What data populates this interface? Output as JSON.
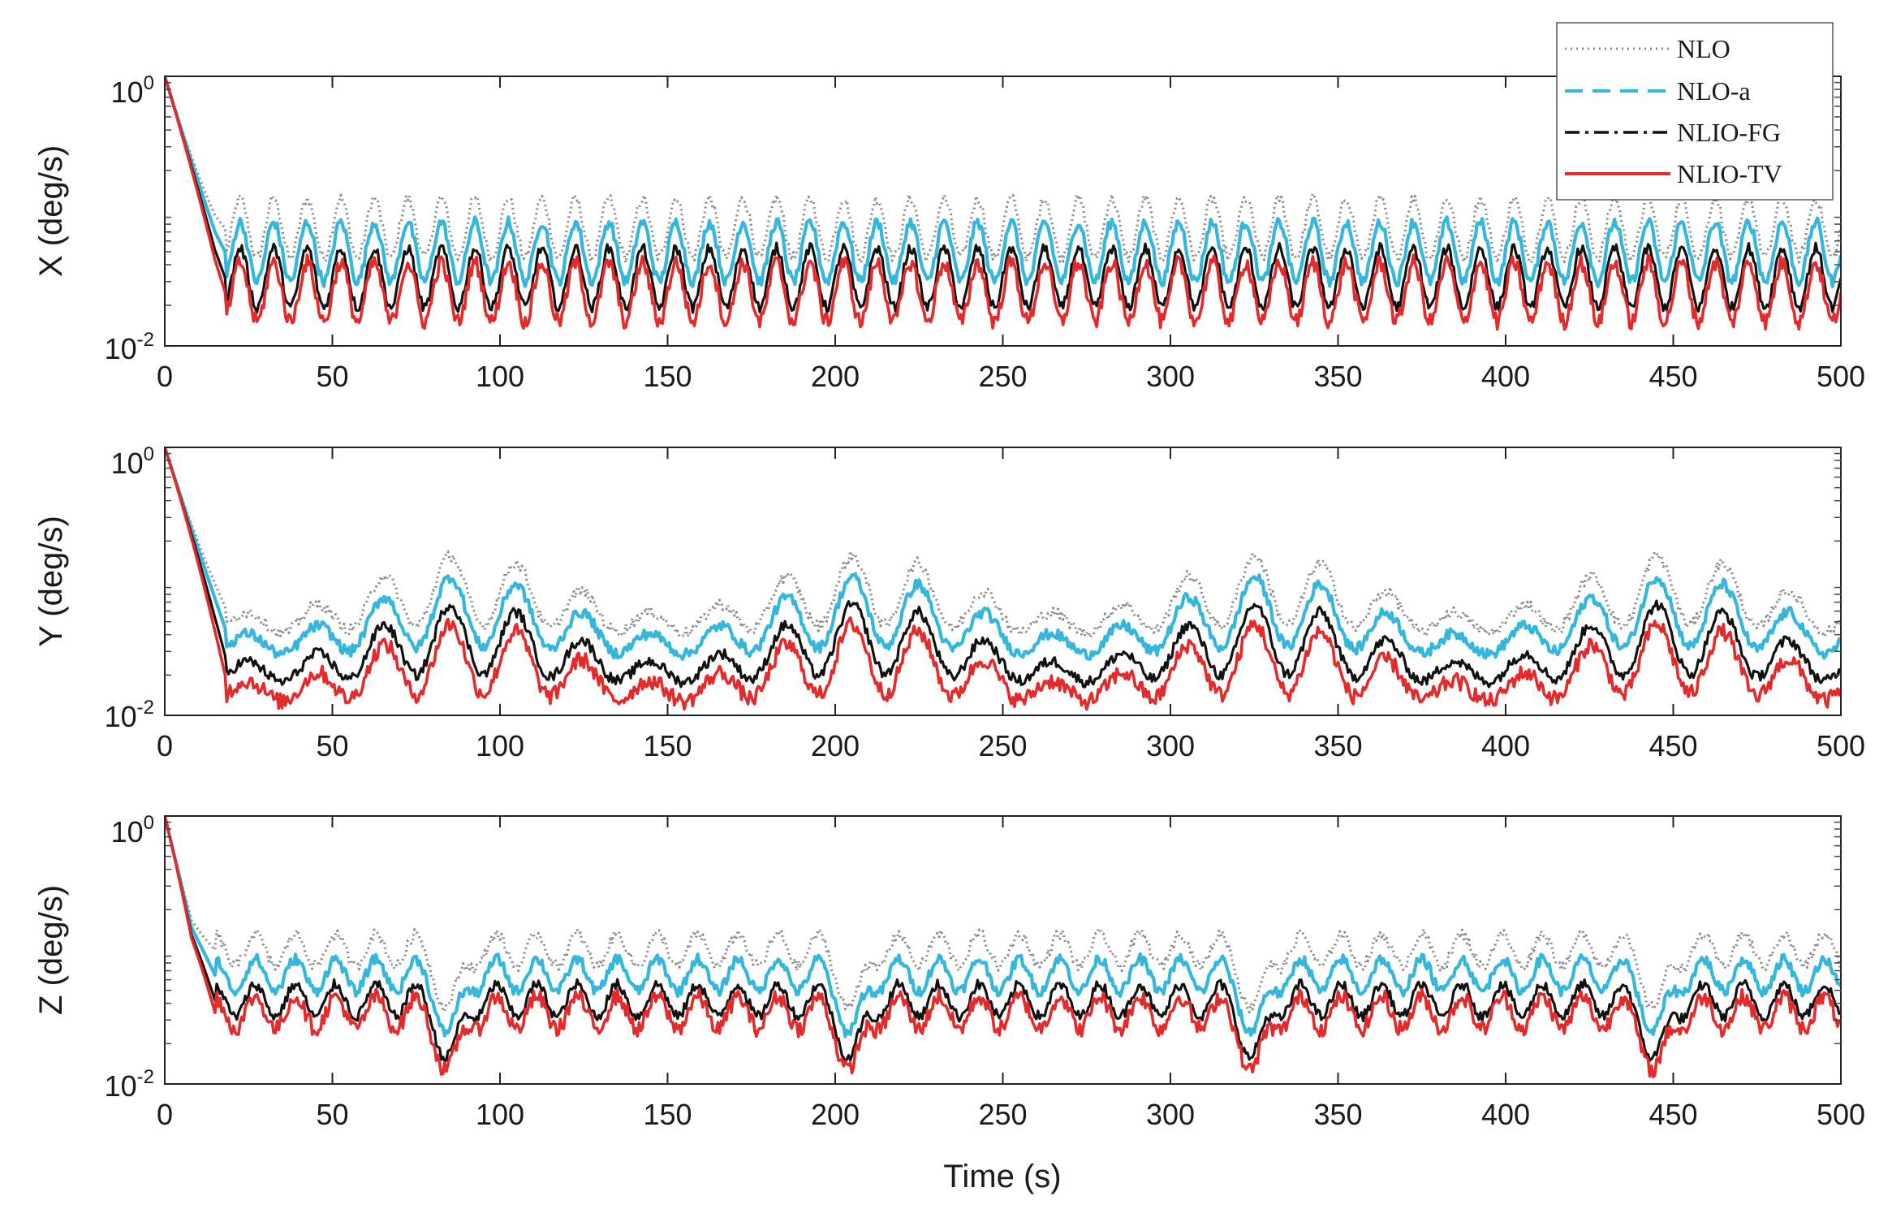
{
  "chart_data": {
    "type": "line",
    "x_axis": {
      "label": "Time (s)",
      "range": [
        0,
        500
      ],
      "ticks": [
        0,
        50,
        100,
        150,
        200,
        250,
        300,
        350,
        400,
        450,
        500
      ],
      "tick_labels": [
        "0",
        "50",
        "100",
        "150",
        "200",
        "250",
        "300",
        "350",
        "400",
        "450",
        "500"
      ]
    },
    "y_scale": "log",
    "y_range": [
      0.01,
      1
    ],
    "y_tick_labels": [
      {
        "base": "10",
        "exponent": "0"
      },
      {
        "base": "10",
        "exponent": "-2"
      }
    ],
    "legend": {
      "position": "top-right",
      "entries": [
        {
          "key": "nlo",
          "label": "NLO",
          "style": "dotted",
          "color": "#8a8a8a"
        },
        {
          "key": "nloa",
          "label": "NLO-a",
          "style": "dashed",
          "color": "#35b6dc"
        },
        {
          "key": "nliofg",
          "label": "NLIO-FG",
          "style": "dashdot",
          "color": "#111111"
        },
        {
          "key": "nliotv",
          "label": "NLIO-TV",
          "style": "solid",
          "color": "#e42a2a"
        }
      ]
    },
    "panels": [
      {
        "ylabel": "X (deg/s)",
        "profile": [
          [
            0,
            1.0
          ],
          [
            15,
            0.06
          ],
          [
            18,
            0.04
          ],
          [
            500,
            0.04
          ]
        ],
        "series_levels": {
          "nlo": 0.075,
          "nloa": 0.05,
          "nliofg": 0.032,
          "nliotv": 0.025
        },
        "oscillation": {
          "period_s": 10,
          "amplitude_decades": 0.22
        }
      },
      {
        "ylabel": "Y (deg/s)",
        "profile": [
          [
            0,
            1.0
          ],
          [
            18,
            0.04
          ],
          [
            500,
            0.04
          ]
        ],
        "series_levels": {
          "nlo": 0.065,
          "nloa": 0.045,
          "nliofg": 0.028,
          "nliotv": 0.02
        },
        "oscillation": {
          "period_s": 20,
          "amplitude_decades": 0.3,
          "beat_period_s": 120
        }
      },
      {
        "ylabel": "Z (deg/s)",
        "profile": [
          [
            0,
            1.0
          ],
          [
            8,
            0.15
          ],
          [
            15,
            0.07
          ],
          [
            500,
            0.07
          ]
        ],
        "series_levels": {
          "nlo": 0.1,
          "nloa": 0.065,
          "nliofg": 0.042,
          "nliotv": 0.034
        },
        "oscillation": {
          "period_s": 12,
          "amplitude_decades": 0.12,
          "dip_period_s": 120,
          "dip_first_s": 85
        }
      }
    ]
  }
}
